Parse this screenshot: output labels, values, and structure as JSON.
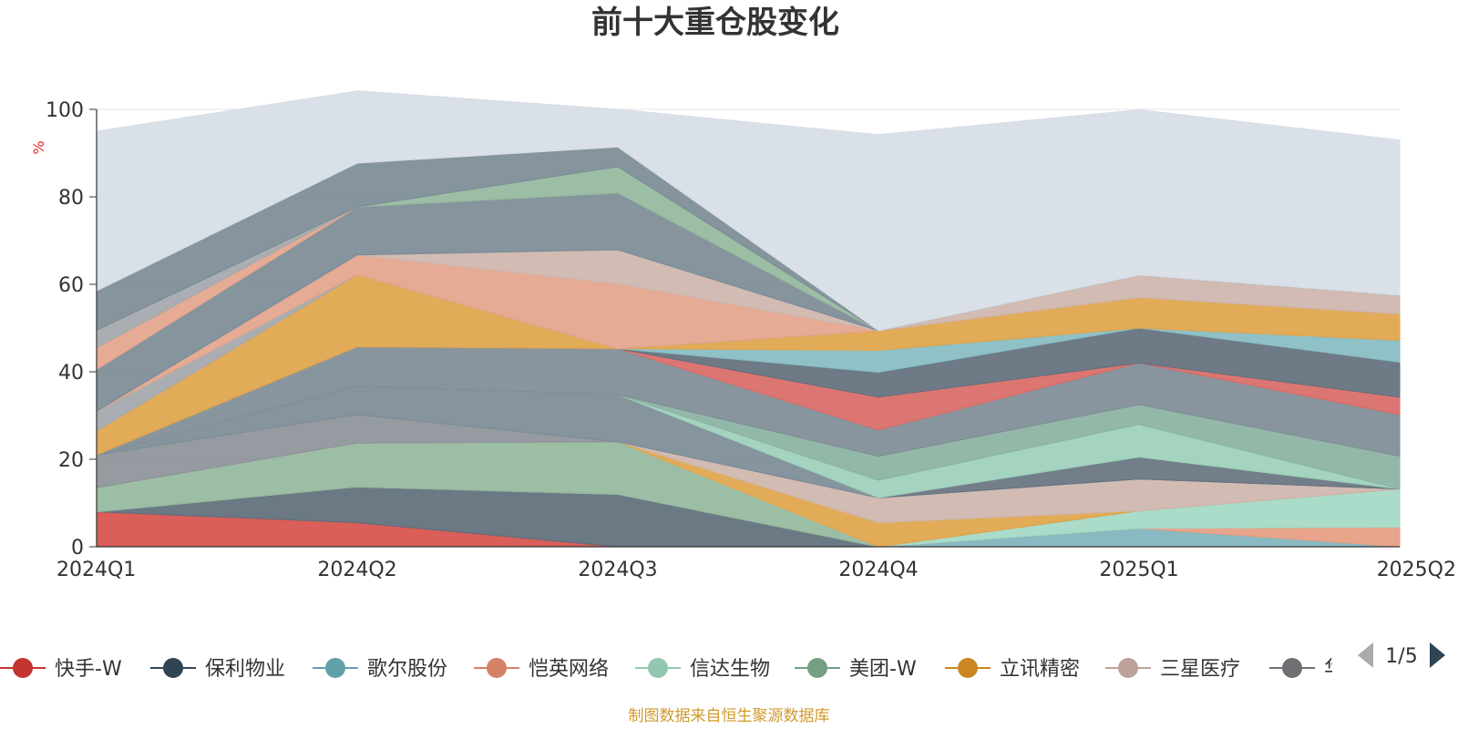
{
  "chart_data": {
    "type": "area",
    "title": "前十大重仓股变化",
    "ylabel": "%",
    "ylim": [
      0,
      100
    ],
    "yticks": [
      0,
      20,
      40,
      60,
      80,
      100
    ],
    "categories": [
      "2024Q1",
      "2024Q2",
      "2024Q3",
      "2024Q4",
      "2025Q1",
      "2025Q2"
    ],
    "series": [
      {
        "name": "快手-W",
        "color": "#d7504b",
        "values": [
          8,
          5.5,
          0,
          0,
          0,
          0
        ]
      },
      {
        "name": "保利物业",
        "color": "#5e6e7b",
        "values": [
          0,
          8.2,
          12,
          0,
          0,
          0
        ]
      },
      {
        "name": "歌尔股份",
        "color": "#7fb3bc",
        "values": [
          0,
          0,
          0,
          0,
          4.2,
          0
        ]
      },
      {
        "name": "恺英网络",
        "color": "#e69d82",
        "values": [
          0,
          0,
          0,
          0,
          0,
          4.5
        ]
      },
      {
        "name": "信达生物",
        "color": "#a3d9c4",
        "values": [
          0,
          0,
          0,
          0,
          4,
          8.7
        ]
      },
      {
        "name": "美团-W",
        "color": "#93b89d",
        "values": [
          5.5,
          10,
          12,
          0,
          0,
          0
        ]
      },
      {
        "name": "立讯精密",
        "color": "#dfa44a",
        "values": [
          0,
          0,
          0,
          5.5,
          0,
          0
        ]
      },
      {
        "name": "三星医疗",
        "color": "#cdb5ad",
        "values": [
          0,
          0,
          0,
          5.7,
          7.3,
          0
        ]
      },
      {
        "name": "华",
        "color": "#8c9399",
        "values": [
          7.5,
          6.5,
          0,
          0,
          0,
          0
        ]
      },
      {
        "name": "",
        "color": "#7b8b95",
        "values": [
          0,
          6.5,
          10.8,
          0,
          0,
          0
        ]
      },
      {
        "name": "",
        "color": "#66737f",
        "values": [
          0,
          0,
          0,
          0,
          5,
          0
        ]
      },
      {
        "name": "",
        "color": "#9ccfbb",
        "values": [
          0,
          0,
          0,
          4,
          7.5,
          0
        ]
      },
      {
        "name": "",
        "color": "#8ab2a0",
        "values": [
          0,
          0,
          0,
          5.5,
          4.5,
          7.5
        ]
      },
      {
        "name": "",
        "color": "#7e8c96",
        "values": [
          0,
          9,
          10.5,
          6,
          9.5,
          9.5
        ]
      },
      {
        "name": "",
        "color": "#d96a66",
        "values": [
          0,
          0,
          0,
          7.5,
          0,
          4
        ]
      },
      {
        "name": "",
        "color": "#626f7c",
        "values": [
          0,
          0,
          0,
          5.7,
          8,
          8
        ]
      },
      {
        "name": "",
        "color": "#86bcc2",
        "values": [
          0,
          0,
          0,
          5,
          0,
          5
        ]
      },
      {
        "name": "",
        "color": "#dfa44a",
        "values": [
          5.5,
          16.5,
          0,
          4.5,
          7,
          6
        ]
      },
      {
        "name": "",
        "color": "#a3a7ab",
        "values": [
          4.5,
          0,
          0,
          0,
          0,
          0
        ]
      },
      {
        "name": "",
        "color": "#e3a48b",
        "values": [
          0,
          4.5,
          14.8,
          0,
          0,
          0
        ]
      },
      {
        "name": "",
        "color": "#cdb5ad",
        "values": [
          0,
          0,
          7.8,
          0,
          5.1,
          4.3
        ]
      },
      {
        "name": "",
        "color": "#7b8b95",
        "values": [
          9.5,
          11,
          13,
          0,
          0,
          0
        ]
      },
      {
        "name": "",
        "color": "#e3a48b",
        "values": [
          5,
          0,
          0,
          0,
          0,
          0
        ]
      },
      {
        "name": "",
        "color": "#a3a7ab",
        "values": [
          4,
          0,
          0,
          0,
          0,
          0
        ]
      },
      {
        "name": "",
        "color": "#93b89d",
        "values": [
          0,
          0,
          6,
          0,
          0,
          0
        ]
      },
      {
        "name": "",
        "color": "#7b8b95",
        "values": [
          9,
          10,
          4.5,
          0,
          0,
          0
        ]
      },
      {
        "name": "",
        "color": "#d7dde5",
        "values": [
          36.5,
          16.5,
          8.6,
          44.8,
          37.8,
          35.5
        ]
      }
    ],
    "legend": {
      "position": "bottom",
      "page": "1/5"
    }
  },
  "footer": "制图数据来自恒生聚源数据库"
}
